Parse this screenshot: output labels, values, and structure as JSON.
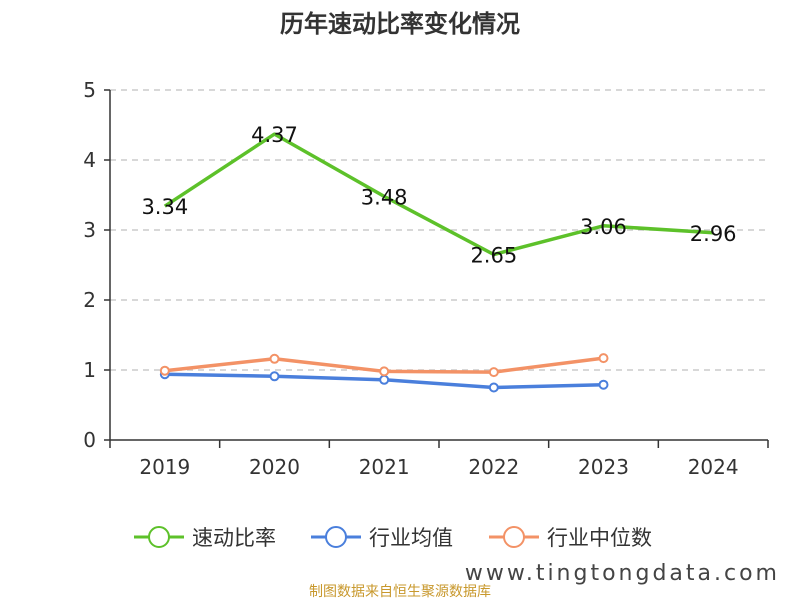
{
  "chart_data": {
    "type": "line",
    "title": "历年速动比率变化情况",
    "categories": [
      "2019",
      "2020",
      "2021",
      "2022",
      "2023",
      "2024"
    ],
    "ylim": [
      0,
      5
    ],
    "yticks": [
      0,
      1,
      2,
      3,
      4,
      5
    ],
    "grid": true,
    "legend_position": "bottom",
    "series": [
      {
        "name": "速动比率",
        "color": "#5dc12a",
        "values": [
          3.34,
          4.37,
          3.48,
          2.65,
          3.06,
          2.96
        ],
        "labels": [
          "3.34",
          "4.37",
          "3.48",
          "2.65",
          "3.06",
          "2.96"
        ],
        "show_markers": false,
        "show_labels": true
      },
      {
        "name": "行业均值",
        "color": "#4a7fdc",
        "values": [
          0.94,
          0.91,
          0.86,
          0.75,
          0.79,
          null
        ],
        "show_markers": true,
        "show_labels": false
      },
      {
        "name": "行业中位数",
        "color": "#f39266",
        "values": [
          0.99,
          1.16,
          0.98,
          0.97,
          1.17,
          null
        ],
        "show_markers": true,
        "show_labels": false
      }
    ]
  },
  "footer": {
    "source": "制图数据来自恒生聚源数据库",
    "watermark": "www.tingtongdata.com"
  }
}
